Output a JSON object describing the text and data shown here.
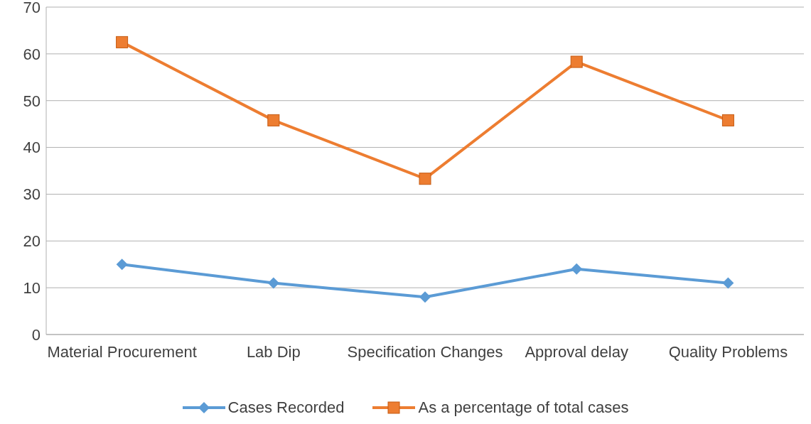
{
  "chart_data": {
    "type": "line",
    "categories": [
      "Material Procurement",
      "Lab Dip",
      "Specification Changes",
      "Approval delay",
      "Quality Problems"
    ],
    "series": [
      {
        "name": "Cases Recorded",
        "color": "#5b9bd5",
        "marker": "diamond",
        "values": [
          15,
          11,
          8,
          14,
          11
        ]
      },
      {
        "name": "As a percentage of total cases",
        "color": "#ed7d31",
        "marker": "square",
        "values": [
          62.5,
          45.8,
          33.3,
          58.3,
          45.8
        ]
      }
    ],
    "ylim": [
      0,
      70
    ],
    "yticks": [
      0,
      10,
      20,
      30,
      40,
      50,
      60,
      70
    ],
    "grid": "y",
    "legend": "bottom",
    "line_style": "solid"
  }
}
